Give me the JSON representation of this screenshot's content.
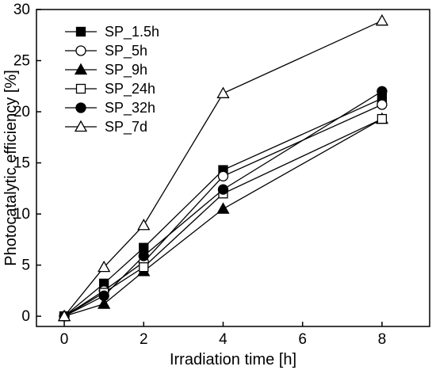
{
  "chart_data": {
    "type": "line",
    "xlabel": "Irradiation time [h]",
    "ylabel": "Photocatalytic efficiency [%]",
    "xlim": [
      -0.7,
      9.2
    ],
    "ylim": [
      -1,
      30
    ],
    "xticks": [
      0,
      2,
      4,
      6,
      8
    ],
    "yticks": [
      0,
      5,
      10,
      15,
      20,
      25,
      30
    ],
    "x": [
      0,
      1,
      2,
      4,
      8
    ],
    "grid": false,
    "legend_position": "top-left",
    "series": [
      {
        "name": "SP_1.5h",
        "marker": "square-filled",
        "values": [
          0,
          3.2,
          6.7,
          14.3,
          21.3
        ]
      },
      {
        "name": "SP_5h",
        "marker": "circle-open",
        "values": [
          0,
          2.5,
          5.3,
          13.7,
          20.7
        ]
      },
      {
        "name": "SP_9h",
        "marker": "triangle-filled",
        "values": [
          0,
          1.2,
          4.4,
          10.5,
          19.3
        ]
      },
      {
        "name": "SP_24h",
        "marker": "square-open",
        "values": [
          0,
          2.3,
          4.8,
          12.0,
          19.3
        ]
      },
      {
        "name": "SP_32h",
        "marker": "circle-filled",
        "values": [
          0,
          2.0,
          5.9,
          12.4,
          22.0
        ]
      },
      {
        "name": "SP_7d",
        "marker": "triangle-open",
        "values": [
          0,
          4.8,
          8.9,
          21.8,
          28.9
        ]
      }
    ],
    "colors": {
      "line": "#000000",
      "open_fill": "#ffffff"
    }
  }
}
